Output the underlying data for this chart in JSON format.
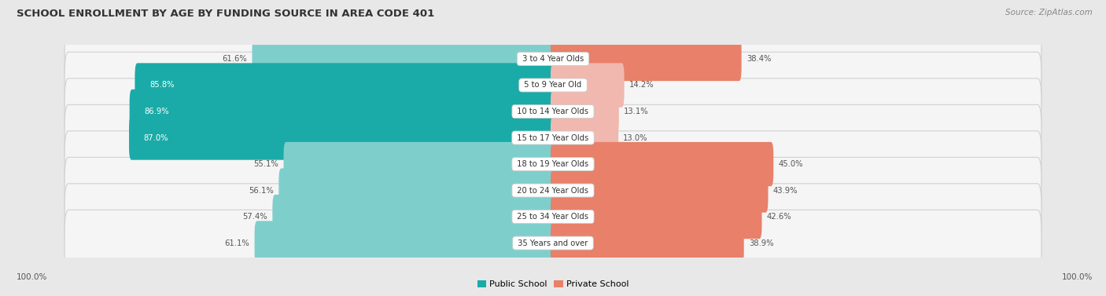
{
  "title": "SCHOOL ENROLLMENT BY AGE BY FUNDING SOURCE IN AREA CODE 401",
  "source": "Source: ZipAtlas.com",
  "categories": [
    "3 to 4 Year Olds",
    "5 to 9 Year Old",
    "10 to 14 Year Olds",
    "15 to 17 Year Olds",
    "18 to 19 Year Olds",
    "20 to 24 Year Olds",
    "25 to 34 Year Olds",
    "35 Years and over"
  ],
  "public_values": [
    61.6,
    85.8,
    86.9,
    87.0,
    55.1,
    56.1,
    57.4,
    61.1
  ],
  "private_values": [
    38.4,
    14.2,
    13.1,
    13.0,
    45.0,
    43.9,
    42.6,
    38.9
  ],
  "public_color_dark": "#1AABA8",
  "public_color_light": "#7ECFCC",
  "private_color_dark": "#E8806A",
  "private_color_light": "#F0B8AE",
  "bg_color": "#e8e8e8",
  "row_bg_color": "#f5f5f5",
  "row_edge_color": "#d0d0d0",
  "axis_label_left": "100.0%",
  "axis_label_right": "100.0%",
  "legend_public": "Public School",
  "legend_private": "Private School",
  "pub_text_dark_color": "white",
  "pub_text_light_color": "#555555",
  "priv_text_color": "#555555",
  "title_color": "#333333",
  "source_color": "#888888"
}
